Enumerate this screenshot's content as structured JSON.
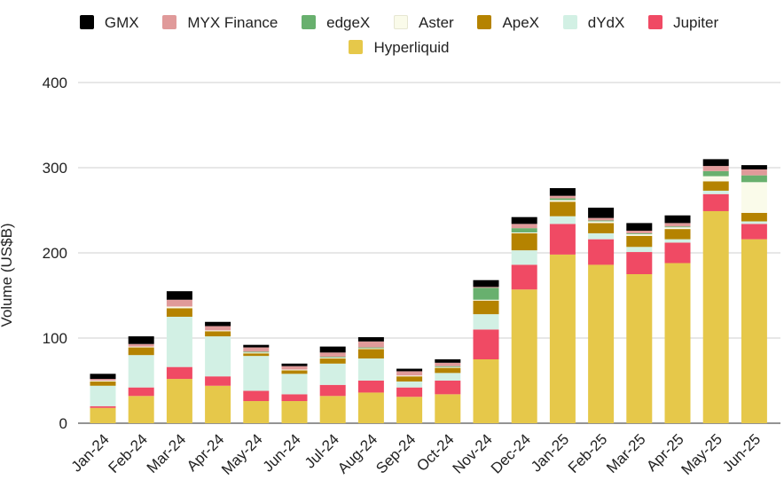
{
  "chart_data": {
    "type": "bar",
    "stacked": true,
    "title": "",
    "xlabel": "",
    "ylabel": "Volume (US$B)",
    "ylim": [
      0,
      400
    ],
    "yticks": [
      0,
      100,
      200,
      300,
      400
    ],
    "grid": true,
    "legend_position": "top",
    "categories": [
      "Jan-24",
      "Feb-24",
      "Mar-24",
      "Apr-24",
      "May-24",
      "Jun-24",
      "Jul-24",
      "Aug-24",
      "Sep-24",
      "Oct-24",
      "Nov-24",
      "Dec-24",
      "Jan-25",
      "Feb-25",
      "Mar-25",
      "Apr-25",
      "May-25",
      "Jun-25"
    ],
    "series": [
      {
        "name": "Hyperliquid",
        "color": "#E6C84A",
        "values": [
          18,
          32,
          52,
          44,
          26,
          26,
          32,
          36,
          31,
          34,
          75,
          157,
          198,
          186,
          175,
          188,
          249,
          216
        ]
      },
      {
        "name": "Jupiter",
        "color": "#F04A64",
        "values": [
          2,
          10,
          14,
          11,
          12,
          8,
          13,
          14,
          11,
          16,
          35,
          29,
          36,
          30,
          26,
          24,
          20,
          18
        ]
      },
      {
        "name": "dYdX",
        "color": "#D2F0E4",
        "values": [
          24,
          38,
          59,
          47,
          41,
          24,
          25,
          26,
          7,
          9,
          18,
          17,
          9,
          7,
          6,
          4,
          4,
          3
        ]
      },
      {
        "name": "ApeX",
        "color": "#B58300",
        "values": [
          5,
          9,
          10,
          6,
          3,
          4,
          6,
          11,
          6,
          6,
          16,
          20,
          17,
          12,
          13,
          12,
          11,
          10
        ]
      },
      {
        "name": "Aster",
        "color": "#FAFBEA",
        "values": [
          1,
          1,
          2,
          1,
          1,
          1,
          1,
          1,
          1,
          1,
          1,
          1,
          2,
          2,
          2,
          2,
          6,
          36
        ]
      },
      {
        "name": "edgeX",
        "color": "#68B06E",
        "values": [
          0,
          0,
          0,
          0,
          1,
          0,
          1,
          1,
          0,
          1,
          14,
          5,
          2,
          1,
          1,
          1,
          6,
          8
        ]
      },
      {
        "name": "MYX Finance",
        "color": "#E09A9A",
        "values": [
          2,
          3,
          8,
          5,
          5,
          4,
          5,
          7,
          5,
          4,
          1,
          5,
          3,
          3,
          3,
          4,
          6,
          7
        ]
      },
      {
        "name": "GMX",
        "color": "#000000",
        "values": [
          6,
          9,
          10,
          5,
          3,
          3,
          7,
          5,
          3,
          4,
          8,
          8,
          9,
          12,
          9,
          9,
          8,
          5
        ]
      }
    ]
  },
  "legend": {
    "items": [
      {
        "label": "GMX",
        "color": "#000000"
      },
      {
        "label": "MYX Finance",
        "color": "#E09A9A"
      },
      {
        "label": "edgeX",
        "color": "#68B06E"
      },
      {
        "label": "Aster",
        "color": "#FAFBEA"
      },
      {
        "label": "ApeX",
        "color": "#B58300"
      },
      {
        "label": "dYdX",
        "color": "#D2F0E4"
      },
      {
        "label": "Jupiter",
        "color": "#F04A64"
      },
      {
        "label": "Hyperliquid",
        "color": "#E6C84A"
      }
    ]
  }
}
